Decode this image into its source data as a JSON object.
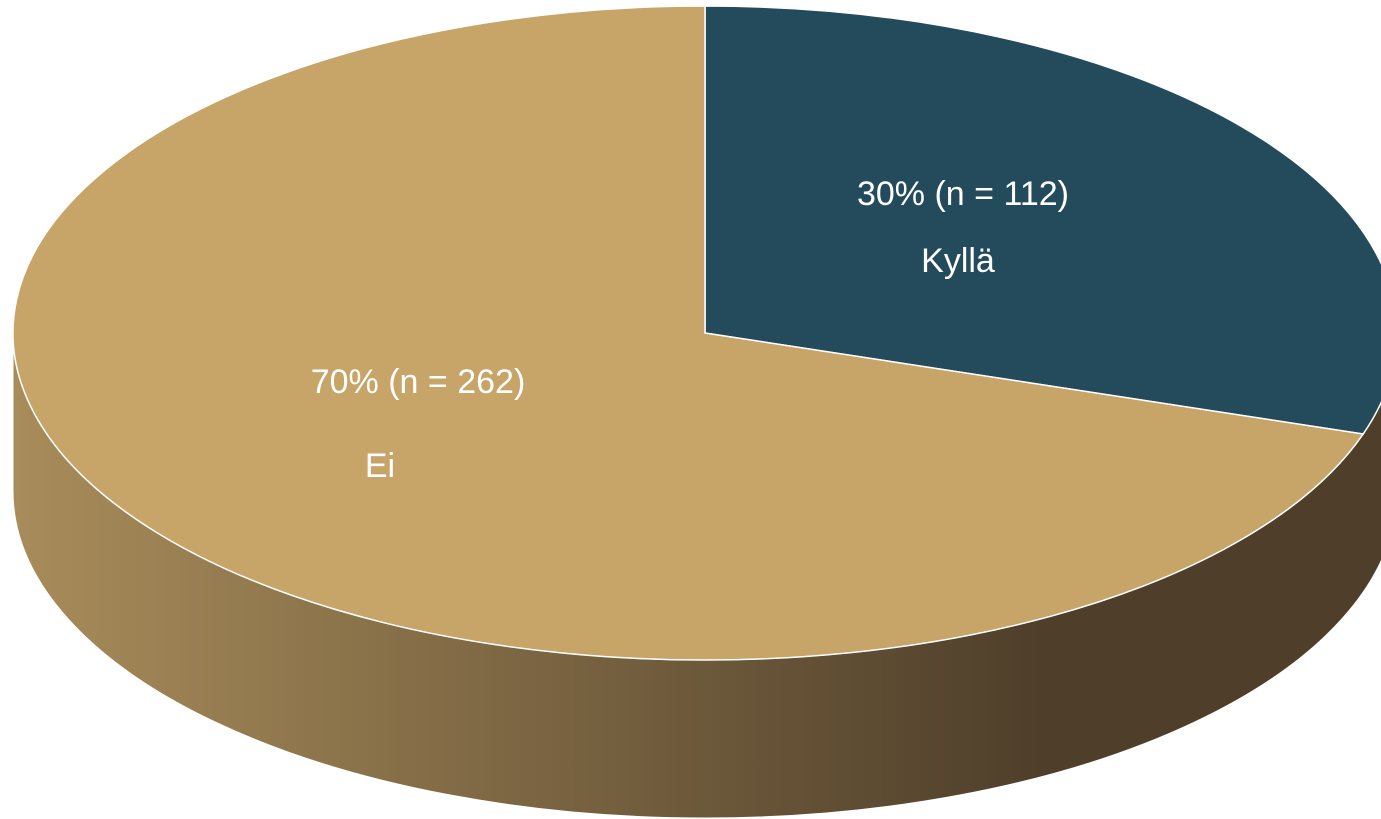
{
  "chart_data": {
    "type": "pie",
    "style": "3d",
    "slices": [
      {
        "category": "Kyllä",
        "percent": 30,
        "n": 112,
        "value_label": "30% (n = 112)",
        "color": "#234B5C"
      },
      {
        "category": "Ei",
        "percent": 70,
        "n": 262,
        "value_label": "70% (n = 262)",
        "color": "#C7A468"
      }
    ],
    "side_colors": {
      "light": "#A88C5A",
      "dark": "#4E3E2A"
    },
    "legend": "none"
  }
}
